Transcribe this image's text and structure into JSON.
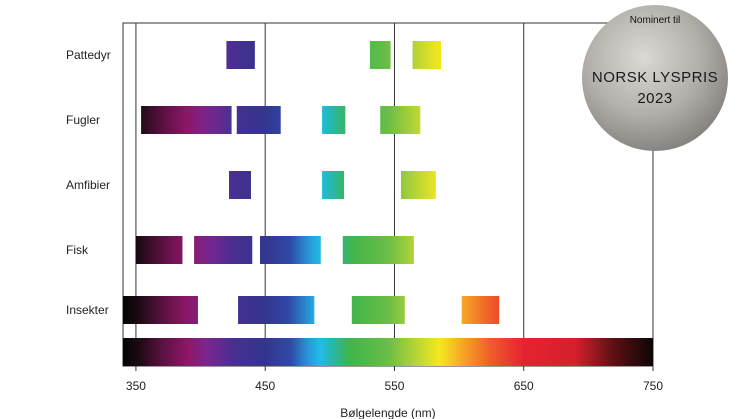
{
  "chart_data": {
    "type": "bar",
    "subtype": "range",
    "xlabel": "Bølgelengde (nm)",
    "xlim": [
      340,
      750
    ],
    "xticks": [
      350,
      450,
      550,
      650,
      750
    ],
    "vlines": [
      350,
      450,
      550,
      650
    ],
    "grid": false,
    "categories": [
      "Pattedyr",
      "Fugler",
      "Amfibier",
      "Fisk",
      "Insekter"
    ],
    "ranges": [
      [
        [
          420,
          442
        ],
        [
          531,
          547
        ],
        [
          564,
          586
        ]
      ],
      [
        [
          354,
          424
        ],
        [
          428,
          462
        ],
        [
          494,
          512
        ],
        [
          539,
          570
        ]
      ],
      [
        [
          422,
          439
        ],
        [
          494,
          511
        ],
        [
          555,
          582
        ]
      ],
      [
        [
          350,
          386
        ],
        [
          395,
          440
        ],
        [
          446,
          493
        ],
        [
          510,
          565
        ]
      ],
      [
        [
          340,
          398
        ],
        [
          429,
          488
        ],
        [
          517,
          558
        ],
        [
          602,
          631
        ]
      ]
    ],
    "spectrum": {
      "stops": [
        {
          "nm": 340,
          "color": "#050505"
        },
        {
          "nm": 352,
          "color": "#1a0a12"
        },
        {
          "nm": 370,
          "color": "#5a1140"
        },
        {
          "nm": 390,
          "color": "#8e1668"
        },
        {
          "nm": 405,
          "color": "#7a2690"
        },
        {
          "nm": 425,
          "color": "#4a2f92"
        },
        {
          "nm": 450,
          "color": "#32358f"
        },
        {
          "nm": 470,
          "color": "#2f4ba8"
        },
        {
          "nm": 482,
          "color": "#2a8fd6"
        },
        {
          "nm": 492,
          "color": "#20bce8"
        },
        {
          "nm": 502,
          "color": "#27b8a8"
        },
        {
          "nm": 515,
          "color": "#3eb54c"
        },
        {
          "nm": 545,
          "color": "#6abd46"
        },
        {
          "nm": 568,
          "color": "#bcd634"
        },
        {
          "nm": 585,
          "color": "#f5e81e"
        },
        {
          "nm": 600,
          "color": "#f6b024"
        },
        {
          "nm": 625,
          "color": "#ef5a2a"
        },
        {
          "nm": 650,
          "color": "#e52330"
        },
        {
          "nm": 690,
          "color": "#d4202c"
        },
        {
          "nm": 720,
          "color": "#5a1014"
        },
        {
          "nm": 750,
          "color": "#0d0606"
        }
      ]
    }
  },
  "badge": {
    "line1": "Nominert til",
    "line2": "NORSK LYSPRIS",
    "line3": "2023"
  }
}
